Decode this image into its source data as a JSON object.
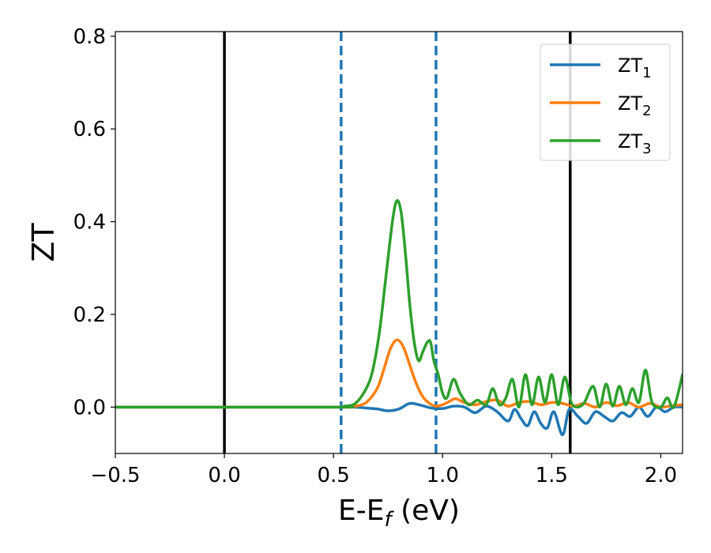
{
  "chart_data": {
    "type": "line",
    "xlabel": "E-E",
    "xlabel_sub": "f",
    "xlabel_unit": " (eV)",
    "ylabel": "ZT",
    "xlim": [
      -0.5,
      2.1
    ],
    "ylim": [
      -0.1,
      0.81
    ],
    "xticks": [
      -0.5,
      0.0,
      0.5,
      1.0,
      1.5,
      2.0
    ],
    "xtick_labels": [
      "−0.5",
      "0.0",
      "0.5",
      "1.0",
      "1.5",
      "2.0"
    ],
    "yticks": [
      0.0,
      0.2,
      0.4,
      0.6,
      0.8
    ],
    "ytick_labels": [
      "0.0",
      "0.2",
      "0.4",
      "0.6",
      "0.8"
    ],
    "legend_position": "top-right",
    "vlines": [
      {
        "x": 0.0,
        "style": "solid",
        "color": "#000000"
      },
      {
        "x": 0.535,
        "style": "dashed",
        "color": "#1f77b4"
      },
      {
        "x": 0.97,
        "style": "dashed",
        "color": "#1f77b4"
      },
      {
        "x": 1.585,
        "style": "solid",
        "color": "#000000"
      }
    ],
    "series": [
      {
        "name": "ZT",
        "name_sub": "1",
        "color": "#1f77b4",
        "x": [
          -0.5,
          0.5,
          0.55,
          0.6,
          0.65,
          0.7,
          0.75,
          0.8,
          0.85,
          0.9,
          0.95,
          1.0,
          1.05,
          1.1,
          1.15,
          1.2,
          1.25,
          1.3,
          1.33,
          1.36,
          1.39,
          1.42,
          1.45,
          1.48,
          1.51,
          1.55,
          1.58,
          1.62,
          1.66,
          1.7,
          1.74,
          1.78,
          1.82,
          1.86,
          1.9,
          1.94,
          1.98,
          2.02,
          2.06,
          2.1
        ],
        "y": [
          0.0,
          0.0,
          0.0,
          0.0,
          -0.002,
          -0.004,
          -0.008,
          -0.004,
          0.008,
          0.004,
          -0.002,
          -0.003,
          0.002,
          0.0,
          -0.012,
          0.002,
          -0.01,
          -0.03,
          -0.005,
          -0.025,
          -0.04,
          -0.01,
          -0.035,
          -0.045,
          -0.01,
          -0.06,
          -0.005,
          -0.02,
          -0.035,
          -0.01,
          -0.02,
          -0.03,
          -0.012,
          -0.02,
          0.0,
          -0.02,
          0.0,
          -0.01,
          0.0,
          0.0
        ]
      },
      {
        "name": "ZT",
        "name_sub": "2",
        "color": "#ff7f0e",
        "x": [
          -0.5,
          0.5,
          0.55,
          0.6,
          0.65,
          0.7,
          0.73,
          0.76,
          0.79,
          0.82,
          0.85,
          0.88,
          0.91,
          0.94,
          0.97,
          1.0,
          1.03,
          1.06,
          1.1,
          1.15,
          1.2,
          1.25,
          1.3,
          1.35,
          1.4,
          1.45,
          1.5,
          1.55,
          1.6,
          1.65,
          1.7,
          1.75,
          1.8,
          1.85,
          1.9,
          1.95,
          2.0,
          2.05,
          2.1
        ],
        "y": [
          0.0,
          0.0,
          0.0,
          0.002,
          0.01,
          0.04,
          0.08,
          0.125,
          0.145,
          0.13,
          0.09,
          0.05,
          0.022,
          0.008,
          0.002,
          0.005,
          0.012,
          0.018,
          0.01,
          0.005,
          0.012,
          0.015,
          0.002,
          0.01,
          0.012,
          0.005,
          0.01,
          0.008,
          0.002,
          0.008,
          0.0,
          0.01,
          0.003,
          0.01,
          0.0,
          0.008,
          0.0,
          0.003,
          0.005
        ]
      },
      {
        "name": "ZT",
        "name_sub": "3",
        "color": "#2ca02c",
        "x": [
          -0.5,
          0.5,
          0.55,
          0.6,
          0.65,
          0.68,
          0.71,
          0.74,
          0.77,
          0.79,
          0.81,
          0.83,
          0.85,
          0.87,
          0.89,
          0.91,
          0.93,
          0.945,
          0.96,
          0.98,
          1.0,
          1.02,
          1.05,
          1.08,
          1.12,
          1.16,
          1.2,
          1.23,
          1.26,
          1.29,
          1.32,
          1.35,
          1.38,
          1.41,
          1.44,
          1.47,
          1.5,
          1.53,
          1.56,
          1.59,
          1.62,
          1.65,
          1.69,
          1.72,
          1.75,
          1.78,
          1.81,
          1.84,
          1.87,
          1.9,
          1.93,
          1.96,
          2.0,
          2.03,
          2.06,
          2.1
        ],
        "y": [
          0.0,
          0.0,
          0.002,
          0.008,
          0.04,
          0.08,
          0.16,
          0.28,
          0.4,
          0.445,
          0.42,
          0.33,
          0.22,
          0.14,
          0.1,
          0.12,
          0.14,
          0.14,
          0.1,
          0.07,
          0.03,
          0.02,
          0.06,
          0.03,
          0.005,
          0.015,
          0.005,
          0.04,
          0.005,
          0.02,
          0.06,
          0.0,
          0.07,
          0.005,
          0.065,
          0.01,
          0.07,
          0.005,
          0.065,
          0.01,
          0.0,
          0.01,
          0.045,
          0.0,
          0.05,
          0.002,
          0.045,
          0.005,
          0.04,
          0.01,
          0.08,
          0.01,
          0.0,
          0.02,
          0.0,
          0.07
        ]
      }
    ]
  }
}
